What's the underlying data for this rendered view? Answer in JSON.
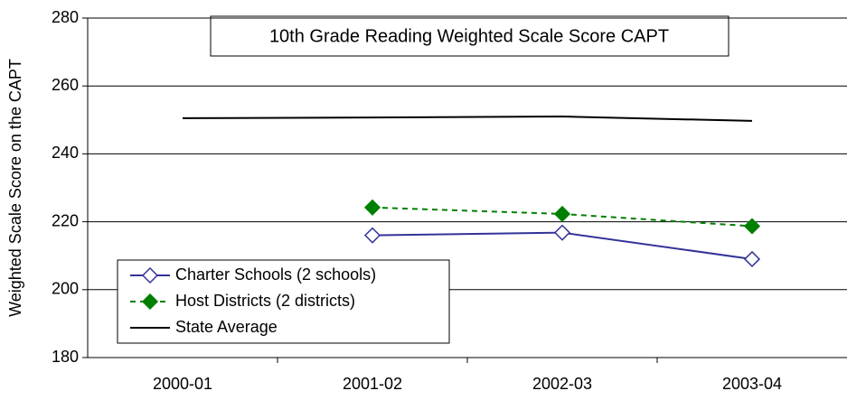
{
  "chart_data": {
    "type": "line",
    "title": "10th Grade Reading Weighted Scale Score CAPT",
    "y_label": "Weighted Scale Score on the CAPT",
    "categories": [
      "2000-01",
      "2001-02",
      "2002-03",
      "2003-04"
    ],
    "series": [
      {
        "name": "Charter Schools (2 schools)",
        "color": "#333399",
        "marker": "open-diamond",
        "dashed": false,
        "values": [
          null,
          216,
          216.8,
          209
        ]
      },
      {
        "name": "Host Districts (2 districts)",
        "color": "#008000",
        "marker": "diamond",
        "dashed": true,
        "values": [
          null,
          224.2,
          222.3,
          218.7
        ]
      },
      {
        "name": "State Average",
        "color": "#000000",
        "marker": "none",
        "dashed": false,
        "values": [
          250.5,
          250.7,
          251,
          249.7
        ]
      }
    ],
    "ylim": [
      180,
      280
    ],
    "yticks": [
      180,
      200,
      220,
      240,
      260,
      280
    ],
    "grid": true,
    "legend": "lower left"
  }
}
